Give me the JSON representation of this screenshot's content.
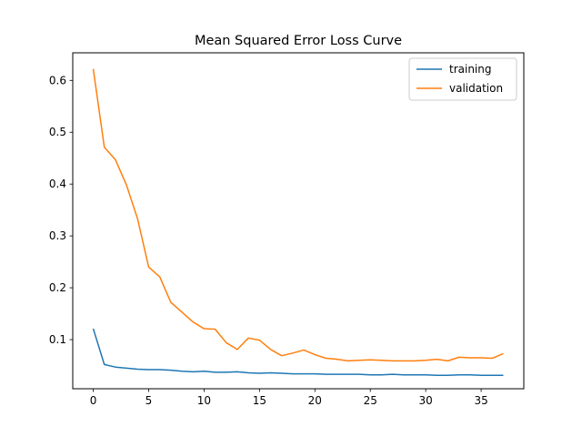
{
  "chart_data": {
    "type": "line",
    "title": "Mean Squared Error Loss Curve",
    "xlabel": "",
    "ylabel": "",
    "xlim": [
      -1.85,
      38.85
    ],
    "ylim": [
      0.0052,
      0.6532
    ],
    "x_ticks": [
      0,
      5,
      10,
      15,
      20,
      25,
      30,
      35
    ],
    "y_ticks": [
      0.1,
      0.2,
      0.3,
      0.4,
      0.5,
      0.6
    ],
    "grid": false,
    "legend_position": "top-right",
    "series": [
      {
        "name": "training",
        "color": "#1f77b4",
        "x": [
          0,
          1,
          2,
          3,
          4,
          5,
          6,
          7,
          8,
          9,
          10,
          11,
          12,
          13,
          14,
          15,
          16,
          17,
          18,
          19,
          20,
          21,
          22,
          23,
          24,
          25,
          26,
          27,
          28,
          29,
          30,
          31,
          32,
          33,
          34,
          35,
          36,
          37
        ],
        "values": [
          0.121,
          0.052,
          0.047,
          0.045,
          0.043,
          0.042,
          0.042,
          0.041,
          0.039,
          0.038,
          0.039,
          0.037,
          0.037,
          0.038,
          0.036,
          0.035,
          0.036,
          0.035,
          0.034,
          0.034,
          0.034,
          0.033,
          0.033,
          0.033,
          0.033,
          0.032,
          0.032,
          0.033,
          0.032,
          0.032,
          0.032,
          0.031,
          0.031,
          0.032,
          0.032,
          0.031,
          0.031,
          0.031
        ]
      },
      {
        "name": "validation",
        "color": "#ff7f0e",
        "x": [
          0,
          1,
          2,
          3,
          4,
          5,
          6,
          7,
          8,
          9,
          10,
          11,
          12,
          13,
          14,
          15,
          16,
          17,
          18,
          19,
          20,
          21,
          22,
          23,
          24,
          25,
          26,
          27,
          28,
          29,
          30,
          31,
          32,
          33,
          34,
          35,
          36,
          37
        ],
        "values": [
          0.622,
          0.471,
          0.447,
          0.398,
          0.333,
          0.24,
          0.221,
          0.172,
          0.153,
          0.134,
          0.121,
          0.12,
          0.094,
          0.081,
          0.103,
          0.099,
          0.081,
          0.069,
          0.074,
          0.08,
          0.071,
          0.064,
          0.062,
          0.059,
          0.06,
          0.061,
          0.06,
          0.059,
          0.059,
          0.059,
          0.06,
          0.062,
          0.059,
          0.066,
          0.065,
          0.065,
          0.064,
          0.073
        ]
      }
    ]
  }
}
